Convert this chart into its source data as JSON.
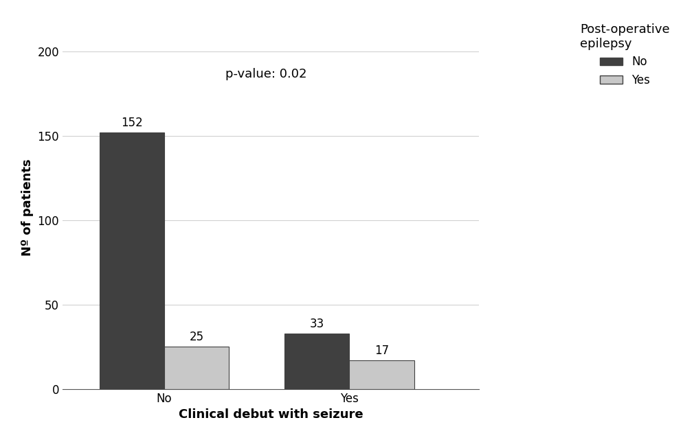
{
  "categories": [
    "No",
    "Yes"
  ],
  "series": {
    "No": [
      152,
      33
    ],
    "Yes": [
      25,
      17
    ]
  },
  "bar_colors": {
    "No": "#404040",
    "Yes": "#c8c8c8"
  },
  "bar_edge_color": "#404040",
  "xlabel": "Clinical debut with seizure",
  "ylabel": "Nº of patients",
  "ylim": [
    0,
    215
  ],
  "yticks": [
    0,
    50,
    100,
    150,
    200
  ],
  "legend_title": "Post-operative\nepilepsy",
  "legend_labels": [
    "No",
    "Yes"
  ],
  "pvalue_text": "p-value: 0.02",
  "bar_width": 0.35,
  "group_positions": [
    1,
    2
  ],
  "background_color": "#ffffff",
  "label_fontsize": 13,
  "tick_fontsize": 12,
  "annotation_fontsize": 12,
  "legend_fontsize": 12,
  "legend_title_fontsize": 13
}
